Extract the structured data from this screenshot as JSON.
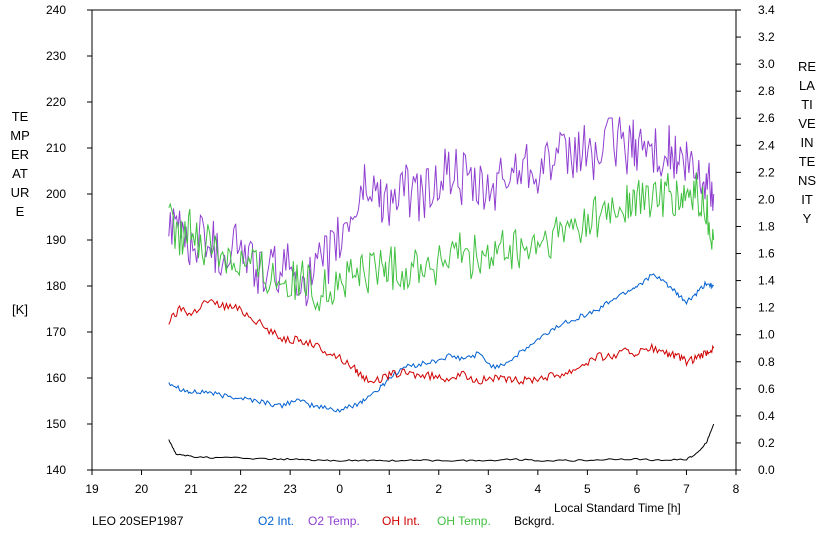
{
  "chart_data": {
    "type": "line",
    "title": "",
    "footer_label": "LEO 20SEP1987",
    "xlabel": "Local Standard Time [h]",
    "ylabel_left": "TEMPERATURE",
    "ylabel_left_unit": "[K]",
    "ylabel_right": "RELATIVE INTENSITY",
    "xlim": [
      19,
      32
    ],
    "xticks": [
      19,
      20,
      21,
      22,
      23,
      24,
      25,
      26,
      27,
      28,
      29,
      30,
      31,
      32
    ],
    "xtick_labels": [
      "19",
      "20",
      "21",
      "22",
      "23",
      "0",
      "1",
      "2",
      "3",
      "4",
      "5",
      "6",
      "7",
      "8"
    ],
    "ylim_left": [
      140,
      240
    ],
    "yticks_left": [
      140,
      150,
      160,
      170,
      180,
      190,
      200,
      210,
      220,
      230,
      240
    ],
    "ylim_right": [
      0.0,
      3.4
    ],
    "yticks_right": [
      "0.0",
      "0.2",
      "0.4",
      "0.6",
      "0.8",
      "1.0",
      "1.2",
      "1.4",
      "1.6",
      "1.8",
      "2.0",
      "2.2",
      "2.4",
      "2.6",
      "2.8",
      "3.0",
      "3.2",
      "3.4"
    ],
    "legend_position": "bottom",
    "series": [
      {
        "name": "O2 Int.",
        "axis": "right",
        "color": "#0060d0",
        "x": [
          20.55,
          20.8,
          21.0,
          21.3,
          21.6,
          21.9,
          22.2,
          22.5,
          22.8,
          23.1,
          23.4,
          23.7,
          24.0,
          24.3,
          24.5,
          24.8,
          25.0,
          25.3,
          25.6,
          25.9,
          26.2,
          26.5,
          26.8,
          27.1,
          27.4,
          27.7,
          28.0,
          28.3,
          28.6,
          28.9,
          29.2,
          29.5,
          29.8,
          30.0,
          30.3,
          30.6,
          30.8,
          31.0,
          31.2,
          31.4,
          31.55
        ],
        "y": [
          0.65,
          0.6,
          0.57,
          0.58,
          0.55,
          0.54,
          0.52,
          0.5,
          0.47,
          0.52,
          0.48,
          0.46,
          0.44,
          0.48,
          0.52,
          0.6,
          0.68,
          0.76,
          0.78,
          0.8,
          0.84,
          0.82,
          0.86,
          0.76,
          0.8,
          0.88,
          0.96,
          1.04,
          1.1,
          1.14,
          1.18,
          1.26,
          1.32,
          1.36,
          1.44,
          1.38,
          1.3,
          1.24,
          1.3,
          1.38,
          1.36
        ]
      },
      {
        "name": "O2 Temp.",
        "axis": "left",
        "color": "#9040d0",
        "x": [
          20.55,
          20.8,
          21.0,
          21.3,
          21.6,
          21.9,
          22.2,
          22.5,
          22.8,
          23.1,
          23.4,
          23.7,
          24.0,
          24.3,
          24.5,
          24.8,
          25.0,
          25.3,
          25.6,
          25.9,
          26.2,
          26.5,
          26.8,
          27.1,
          27.4,
          27.7,
          28.0,
          28.3,
          28.6,
          28.9,
          29.2,
          29.5,
          29.8,
          30.0,
          30.3,
          30.6,
          30.8,
          31.0,
          31.2,
          31.4,
          31.55
        ],
        "y": [
          190,
          193,
          188,
          192,
          186,
          190,
          185,
          182,
          184,
          183,
          181,
          185,
          190,
          196,
          202,
          200,
          198,
          201,
          199,
          202,
          205,
          203,
          200,
          201,
          204,
          207,
          206,
          208,
          207,
          210,
          208,
          212,
          210,
          211,
          209,
          210,
          207,
          206,
          204,
          203,
          200
        ]
      },
      {
        "name": "OH Int.",
        "axis": "right",
        "color": "#d00000",
        "x": [
          20.55,
          20.8,
          21.0,
          21.3,
          21.6,
          21.9,
          22.2,
          22.5,
          22.8,
          23.1,
          23.4,
          23.7,
          24.0,
          24.3,
          24.5,
          24.8,
          25.0,
          25.3,
          25.6,
          25.9,
          26.2,
          26.5,
          26.8,
          27.1,
          27.4,
          27.7,
          28.0,
          28.3,
          28.6,
          28.9,
          29.2,
          29.5,
          29.8,
          30.0,
          30.3,
          30.6,
          30.8,
          31.0,
          31.2,
          31.4,
          31.55
        ],
        "y": [
          1.1,
          1.2,
          1.15,
          1.25,
          1.22,
          1.2,
          1.14,
          1.05,
          0.98,
          0.96,
          0.94,
          0.88,
          0.83,
          0.75,
          0.68,
          0.66,
          0.7,
          0.72,
          0.7,
          0.69,
          0.68,
          0.7,
          0.66,
          0.68,
          0.66,
          0.66,
          0.68,
          0.7,
          0.72,
          0.78,
          0.84,
          0.84,
          0.88,
          0.86,
          0.9,
          0.86,
          0.84,
          0.8,
          0.82,
          0.86,
          0.9
        ]
      },
      {
        "name": "OH Temp.",
        "axis": "left",
        "color": "#40c040",
        "x": [
          20.55,
          20.8,
          21.0,
          21.3,
          21.6,
          21.9,
          22.2,
          22.5,
          22.8,
          23.1,
          23.4,
          23.7,
          24.0,
          24.3,
          24.5,
          24.8,
          25.0,
          25.3,
          25.6,
          25.9,
          26.2,
          26.5,
          26.8,
          27.1,
          27.4,
          27.7,
          28.0,
          28.3,
          28.6,
          28.9,
          29.2,
          29.5,
          29.8,
          30.0,
          30.3,
          30.6,
          30.8,
          31.0,
          31.2,
          31.4,
          31.55
        ],
        "y": [
          194,
          190,
          192,
          189,
          188,
          186,
          185,
          183,
          182,
          181,
          180,
          179,
          181,
          182,
          183,
          184,
          184,
          183,
          185,
          184,
          186,
          187,
          186,
          186,
          188,
          187,
          189,
          190,
          192,
          194,
          195,
          196,
          198,
          198,
          199,
          200,
          198,
          199,
          200,
          196,
          190
        ]
      },
      {
        "name": "Bckgrd.",
        "axis": "right",
        "color": "#000000",
        "x": [
          20.55,
          20.7,
          21.0,
          21.5,
          22.0,
          22.5,
          23.0,
          23.5,
          24.0,
          24.5,
          25.0,
          25.5,
          26.0,
          26.5,
          27.0,
          27.5,
          28.0,
          28.5,
          29.0,
          29.5,
          30.0,
          30.5,
          31.0,
          31.2,
          31.4,
          31.55
        ],
        "y": [
          0.22,
          0.12,
          0.1,
          0.09,
          0.09,
          0.08,
          0.08,
          0.07,
          0.07,
          0.07,
          0.07,
          0.07,
          0.07,
          0.07,
          0.07,
          0.08,
          0.07,
          0.07,
          0.07,
          0.08,
          0.08,
          0.07,
          0.08,
          0.12,
          0.2,
          0.34
        ]
      }
    ]
  }
}
